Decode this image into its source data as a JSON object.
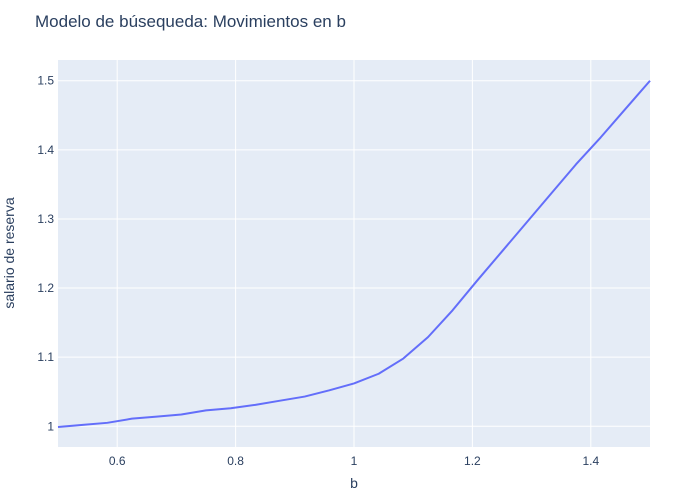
{
  "chart_data": {
    "type": "line",
    "title": "Modelo de búsequeda: Movimientos en b",
    "xlabel": "b",
    "ylabel": "salario de reserva",
    "xlim": [
      0.5,
      1.5
    ],
    "ylim": [
      0.97,
      1.53
    ],
    "x_ticks": [
      0.6,
      0.8,
      1,
      1.2,
      1.4
    ],
    "x_tick_labels": [
      "0.6",
      "0.8",
      "1",
      "1.2",
      "1.4"
    ],
    "y_ticks": [
      1,
      1.1,
      1.2,
      1.3,
      1.4,
      1.5
    ],
    "y_tick_labels": [
      "1",
      "1.1",
      "1.2",
      "1.3",
      "1.4",
      "1.5"
    ],
    "grid": true,
    "series": [
      {
        "color": "#636efa",
        "x": [
          0.5,
          0.5417,
          0.5833,
          0.625,
          0.6667,
          0.7083,
          0.75,
          0.7917,
          0.8333,
          0.875,
          0.9167,
          0.9583,
          1.0,
          1.0417,
          1.0833,
          1.125,
          1.1667,
          1.2083,
          1.25,
          1.2917,
          1.3333,
          1.375,
          1.4167,
          1.4583,
          1.5
        ],
        "y": [
          0.999,
          1.002,
          1.005,
          1.011,
          1.014,
          1.017,
          1.023,
          1.026,
          1.031,
          1.037,
          1.043,
          1.052,
          1.062,
          1.076,
          1.098,
          1.129,
          1.168,
          1.211,
          1.253,
          1.295,
          1.337,
          1.379,
          1.418,
          1.459,
          1.5
        ]
      }
    ]
  },
  "colors": {
    "plot_background": "#e5ecf6",
    "grid": "#ffffff",
    "line": "#636efa",
    "text": "#2a3f5f"
  }
}
